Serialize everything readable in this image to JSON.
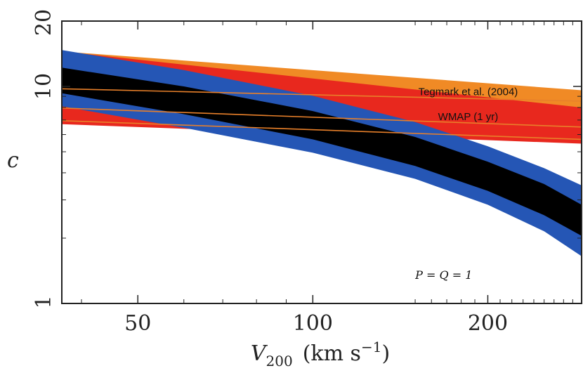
{
  "chart_data": {
    "type": "area",
    "x_scale": "log",
    "y_scale": "log",
    "xlim": [
      37,
      290
    ],
    "ylim": [
      1,
      20
    ],
    "xticks": [
      50,
      100,
      200
    ],
    "xtick_labels": [
      "50",
      "100",
      "200"
    ],
    "yticks": [
      1,
      10,
      20
    ],
    "ytick_labels": [
      "1",
      "10",
      "20"
    ],
    "xlabel_main": "V",
    "xlabel_sub": "200",
    "xlabel_units": "(km s",
    "xlabel_exp": "−1",
    "xlabel_close": ")",
    "ylabel": "c",
    "grid": false,
    "series": [
      {
        "name": "Tegmark et al. (2004)",
        "color": "#f08a25",
        "lower": [
          [
            37,
            9.6
          ],
          [
            290,
            8.0
          ]
        ],
        "upper": [
          [
            37,
            14.5
          ],
          [
            290,
            9.6
          ]
        ]
      },
      {
        "name": "WMAP (1 yr)",
        "color": "#e8281e",
        "lower": [
          [
            37,
            6.7
          ],
          [
            290,
            5.45
          ]
        ],
        "upper": [
          [
            37,
            14.5
          ],
          [
            290,
            8.0
          ]
        ]
      },
      {
        "color": "#2556b5",
        "lower": [
          [
            37,
            8.1
          ],
          [
            60,
            6.45
          ],
          [
            100,
            4.95
          ],
          [
            150,
            3.75
          ],
          [
            200,
            2.85
          ],
          [
            250,
            2.15
          ],
          [
            290,
            1.65
          ]
        ],
        "upper": [
          [
            37,
            14.7
          ],
          [
            60,
            11.9
          ],
          [
            100,
            9.05
          ],
          [
            150,
            6.85
          ],
          [
            200,
            5.3
          ],
          [
            250,
            4.2
          ],
          [
            290,
            3.5
          ]
        ]
      },
      {
        "color": "#000000",
        "lower": [
          [
            37,
            9.3
          ],
          [
            60,
            7.45
          ],
          [
            100,
            5.7
          ],
          [
            150,
            4.3
          ],
          [
            200,
            3.3
          ],
          [
            250,
            2.55
          ],
          [
            290,
            2.05
          ]
        ],
        "upper": [
          [
            37,
            12.2
          ],
          [
            60,
            10.0
          ],
          [
            100,
            7.7
          ],
          [
            150,
            5.85
          ],
          [
            200,
            4.5
          ],
          [
            250,
            3.55
          ],
          [
            290,
            2.85
          ]
        ]
      }
    ],
    "reference_lines": [
      {
        "color": "#e8802a",
        "points": [
          [
            37,
            9.75
          ],
          [
            290,
            8.55
          ]
        ]
      },
      {
        "color": "#e8802a",
        "points": [
          [
            37,
            7.95
          ],
          [
            290,
            6.5
          ]
        ]
      },
      {
        "color": "#e8802a",
        "points": [
          [
            37,
            6.95
          ],
          [
            290,
            5.7
          ]
        ]
      }
    ],
    "annotations": [
      {
        "text": "Tegmark et al. (2004)",
        "x": 185,
        "y": 9.1
      },
      {
        "text": "WMAP (1 yr)",
        "x": 185,
        "y": 7.0
      },
      {
        "text": "P = Q = 1",
        "x": 168,
        "y": 1.3
      }
    ]
  }
}
